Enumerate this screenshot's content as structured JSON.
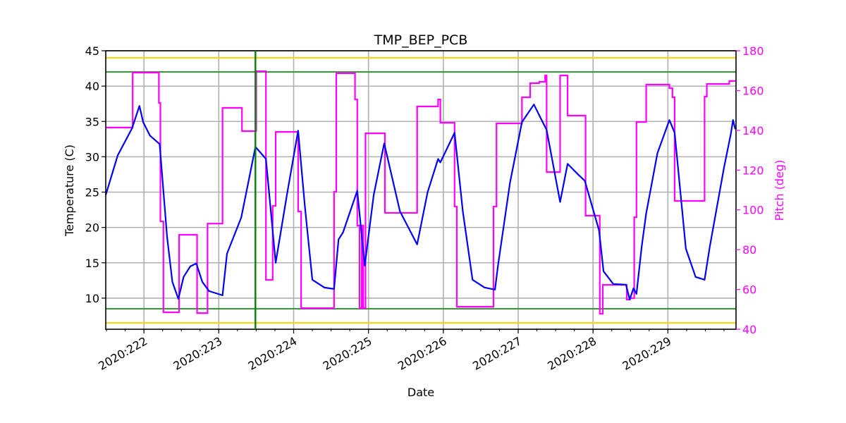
{
  "chart_data": {
    "type": "line",
    "title": "TMP_BEP_PCB",
    "xlabel": "Date",
    "ylabel": "Temperature (C)",
    "y2label": "Pitch (deg)",
    "xlim": [
      221.49,
      229.91
    ],
    "ylim": [
      5.6,
      45
    ],
    "y2lim": [
      40,
      180
    ],
    "grid": true,
    "x_ticks": [
      222,
      223,
      224,
      225,
      226,
      227,
      228,
      229
    ],
    "x_tick_labels": [
      "2020:222",
      "2020:223",
      "2020:224",
      "2020:225",
      "2020:226",
      "2020:227",
      "2020:228",
      "2020:229"
    ],
    "x_minor_tick_step": 0.25,
    "y_ticks": [
      10,
      15,
      20,
      25,
      30,
      35,
      40,
      45
    ],
    "y_tick_labels": [
      "10",
      "15",
      "20",
      "25",
      "30",
      "35",
      "40",
      "45"
    ],
    "y2_ticks": [
      40,
      60,
      80,
      100,
      120,
      140,
      160,
      180
    ],
    "y2_tick_labels": [
      "40",
      "60",
      "80",
      "100",
      "120",
      "140",
      "160",
      "180"
    ],
    "colors": {
      "temperature": "#0000ff",
      "pitch": "#ff00ff",
      "planning_limit": "#3a9a3a",
      "caution_limit": "#ffd11a",
      "now_marker": "#008000",
      "grid": "#b0b0b0"
    },
    "reference_lines": {
      "caution_high": 44.0,
      "planning_high": 42.0,
      "planning_low": 8.5,
      "caution_low": 6.5,
      "vertical_marker": 223.49
    },
    "series": [
      {
        "axis": "left",
        "style": "line",
        "x": [
          221.49,
          221.65,
          221.84,
          221.94,
          221.99,
          222.08,
          222.21,
          222.31,
          222.38,
          222.46,
          222.53,
          222.62,
          222.7,
          222.78,
          222.87,
          223.05,
          223.11,
          223.3,
          223.49,
          223.63,
          223.76,
          223.91,
          224.06,
          224.15,
          224.25,
          224.41,
          224.54,
          224.6,
          224.66,
          224.85,
          224.95,
          225.07,
          225.21,
          225.42,
          225.65,
          225.79,
          225.93,
          225.96,
          226.15,
          226.26,
          226.39,
          226.55,
          226.69,
          226.73,
          226.89,
          227.05,
          227.21,
          227.28,
          227.38,
          227.56,
          227.66,
          227.8,
          227.89,
          228.08,
          228.14,
          228.27,
          228.44,
          228.49,
          228.54,
          228.58,
          228.65,
          228.71,
          228.86,
          229.02,
          229.09,
          229.24,
          229.37,
          229.49,
          229.56,
          229.75,
          229.84,
          229.87,
          229.9
        ],
        "y": [
          24.6,
          30.2,
          34.0,
          37.2,
          34.9,
          33.0,
          31.8,
          18.6,
          12.3,
          9.9,
          13.0,
          14.5,
          14.9,
          12.3,
          11.0,
          10.4,
          16.3,
          21.4,
          31.4,
          29.7,
          15.0,
          24.6,
          33.7,
          23.0,
          12.6,
          11.5,
          11.3,
          18.3,
          19.3,
          25.2,
          14.6,
          24.6,
          31.9,
          22.3,
          17.6,
          25.0,
          29.7,
          29.2,
          33.4,
          22.3,
          12.6,
          11.5,
          11.2,
          14.6,
          26.3,
          34.9,
          37.4,
          35.9,
          33.8,
          23.6,
          29.0,
          27.5,
          26.6,
          19.6,
          13.8,
          12.0,
          11.9,
          9.8,
          11.4,
          10.6,
          17.3,
          22.0,
          30.5,
          35.2,
          33.4,
          17.0,
          13.0,
          12.6,
          17.3,
          28.5,
          33.2,
          35.2,
          33.9
        ]
      },
      {
        "axis": "right",
        "style": "step-post",
        "x": [
          221.49,
          221.85,
          222.2,
          222.22,
          222.26,
          222.47,
          222.71,
          222.85,
          223.05,
          223.31,
          223.5,
          223.63,
          223.72,
          223.76,
          224.06,
          224.1,
          224.54,
          224.57,
          224.82,
          224.85,
          224.88,
          224.91,
          224.93,
          224.96,
          225.22,
          225.65,
          225.93,
          225.96,
          226.15,
          226.18,
          226.67,
          226.71,
          227.05,
          227.16,
          227.28,
          227.36,
          227.38,
          227.56,
          227.66,
          227.9,
          228.09,
          228.13,
          228.45,
          228.49,
          228.55,
          228.58,
          228.71,
          229.02,
          229.06,
          229.09,
          229.49,
          229.52,
          229.82,
          229.91
        ],
        "y": [
          141.4,
          169.0,
          153.8,
          94.2,
          48.5,
          87.5,
          48.1,
          93.1,
          151.3,
          139.6,
          169.7,
          64.8,
          102.0,
          139.2,
          99.2,
          50.6,
          109.1,
          168.7,
          155.5,
          92.1,
          50.6,
          92.1,
          50.6,
          138.5,
          98.5,
          152.0,
          155.5,
          143.8,
          101.7,
          51.3,
          101.7,
          143.5,
          156.6,
          163.7,
          164.4,
          167.6,
          119.0,
          167.6,
          147.4,
          97.1,
          47.8,
          62.3,
          54.9,
          55.6,
          96.3,
          144.2,
          163.0,
          161.2,
          156.6,
          104.5,
          157.0,
          163.3,
          164.8,
          164.8
        ]
      }
    ]
  }
}
